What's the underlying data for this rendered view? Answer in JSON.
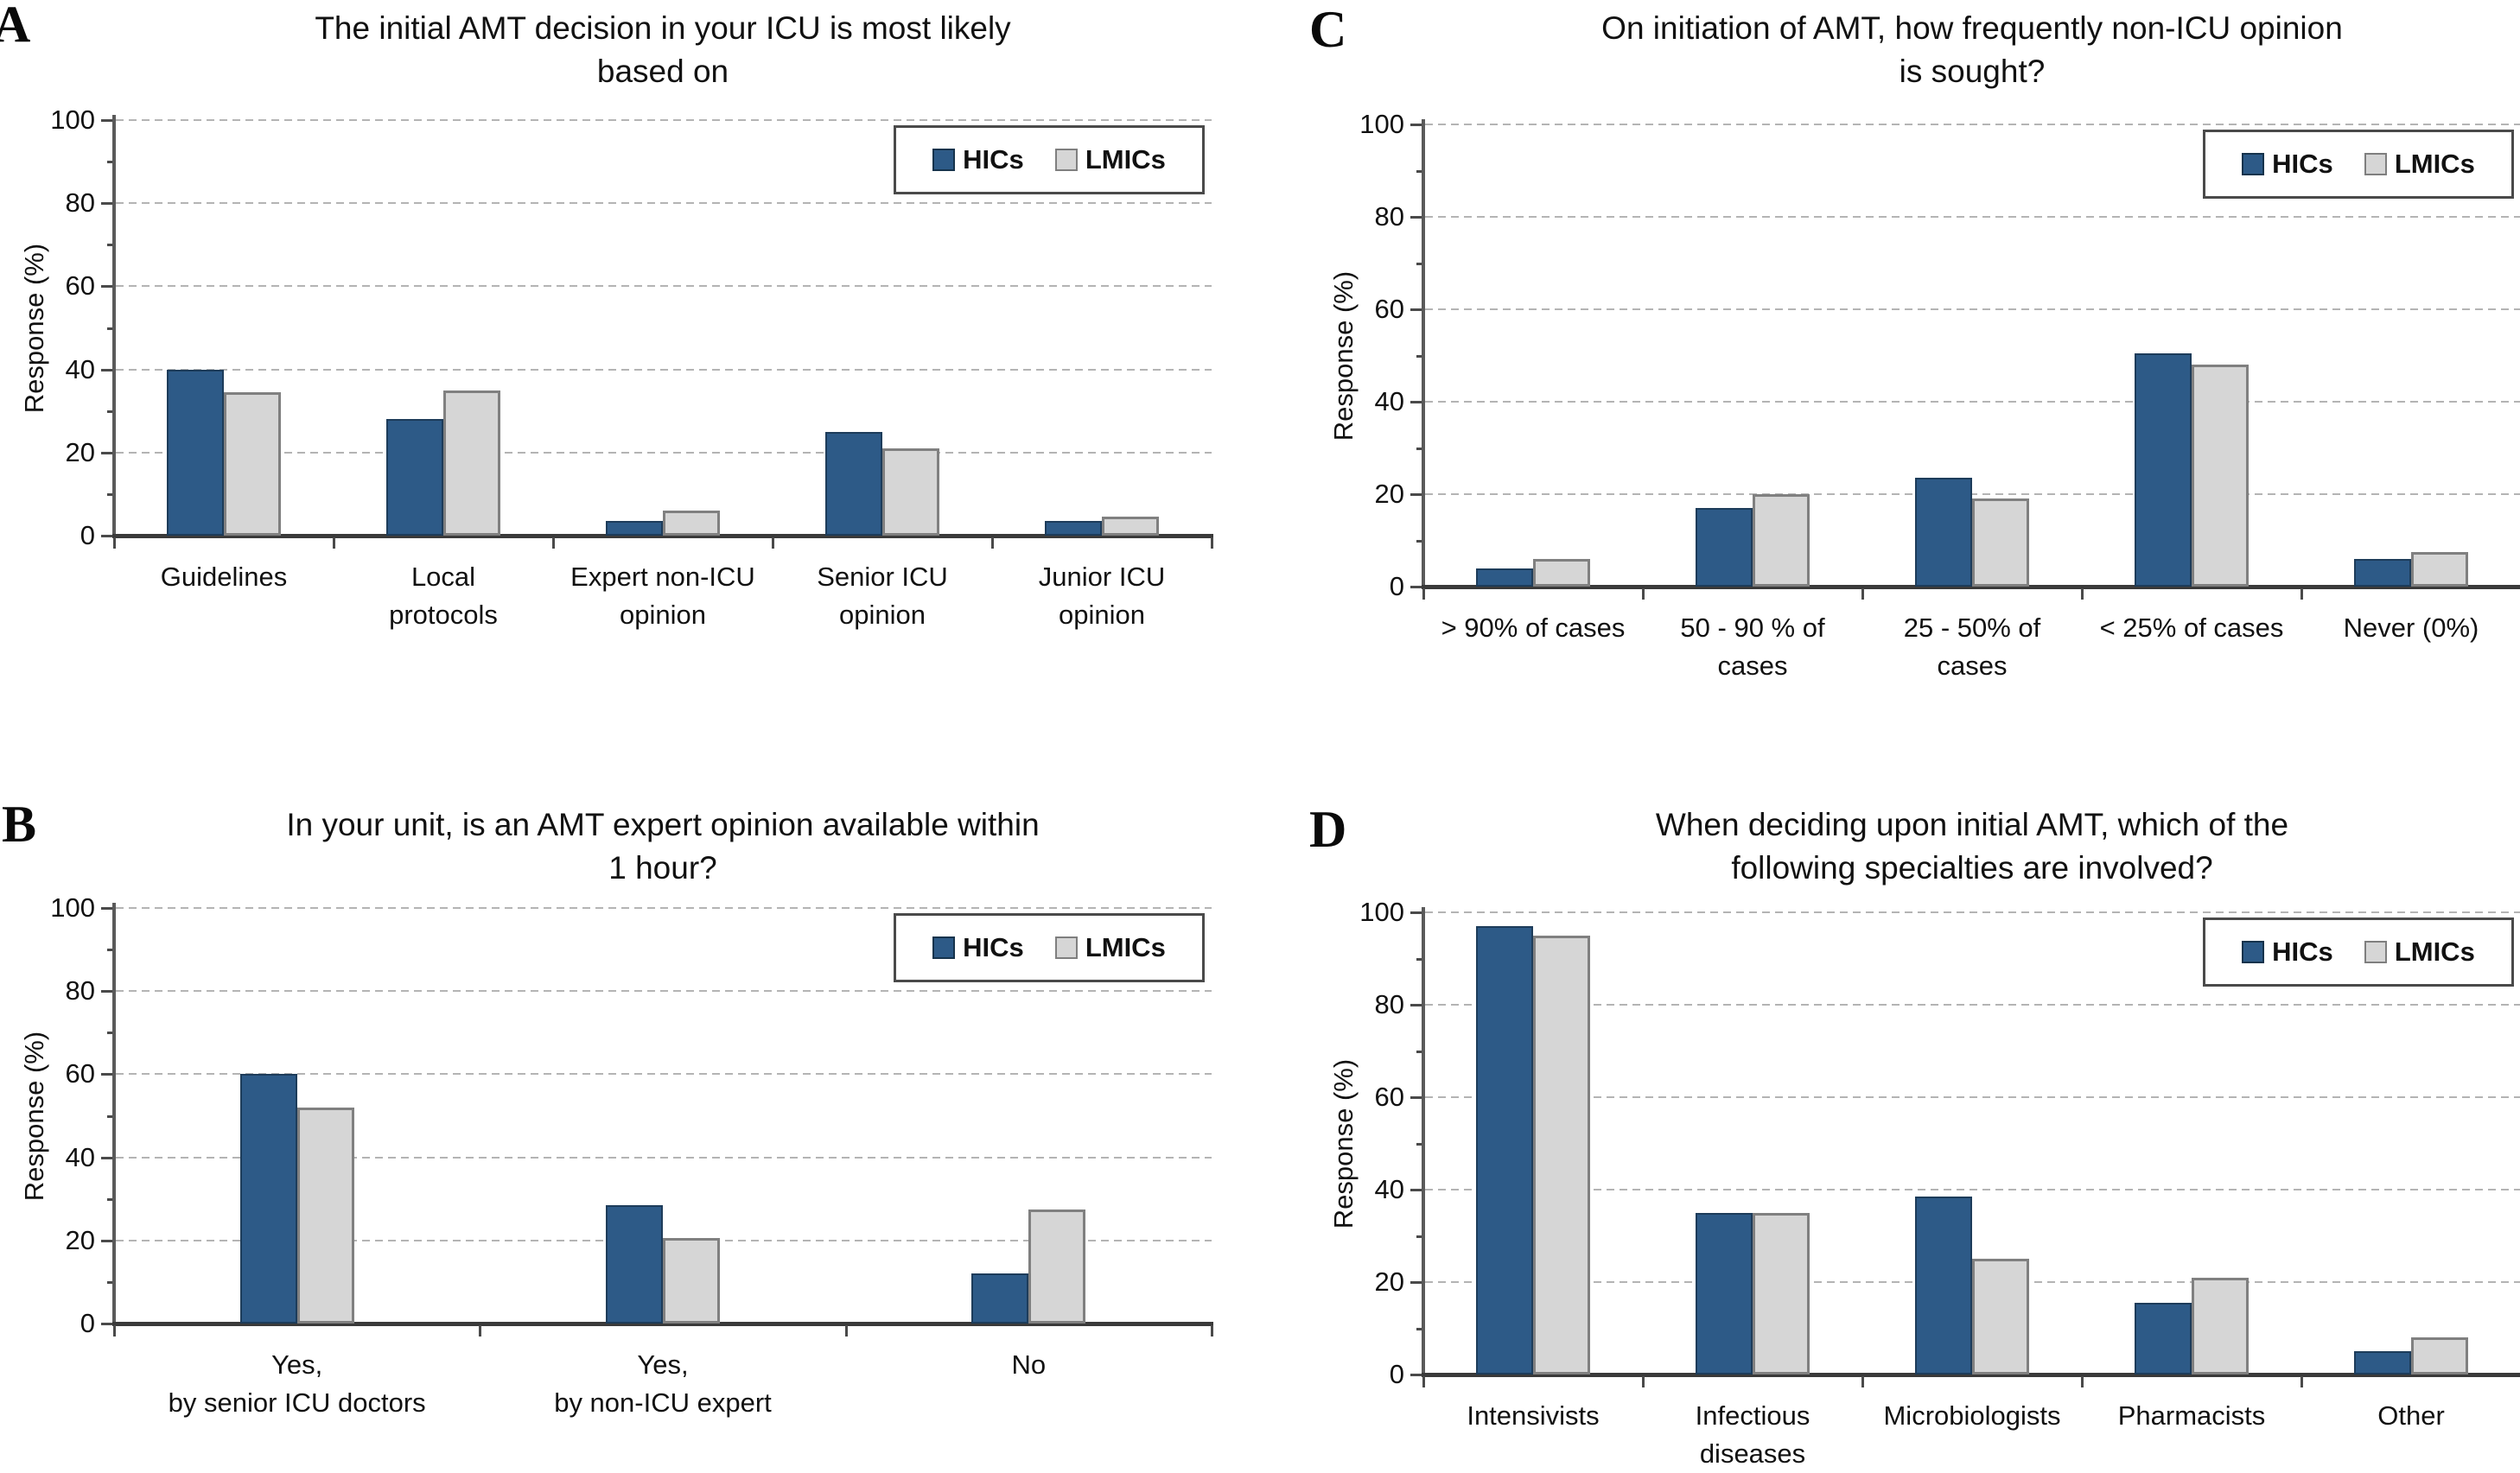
{
  "figure_title": "Four-panel survey bar charts comparing HICs and LMICs",
  "colors": {
    "hics_fill": "#2d5a87",
    "lmics_fill": "#d6d6d6",
    "gridline": "#b4b4b4",
    "axis": "#4a4a4a"
  },
  "chart_data": [
    {
      "type": "bar",
      "panel": "A",
      "title_lines": [
        "The initial AMT decision in your ICU is most likely",
        "based on"
      ],
      "ylabel": "Response (%)",
      "ylim": [
        0,
        100
      ],
      "yticks": [
        0,
        20,
        40,
        60,
        80,
        100
      ],
      "grid": true,
      "legend_position": "top-right",
      "categories": [
        "Guidelines",
        "Local\nprotocols",
        "Expert non-ICU\nopinion",
        "Senior ICU\nopinion",
        "Junior ICU\nopinion"
      ],
      "series": [
        {
          "name": "HICs",
          "values": [
            40,
            28,
            3.5,
            25,
            3.5
          ]
        },
        {
          "name": "LMICs",
          "values": [
            34.5,
            35,
            6,
            21,
            4.5
          ]
        }
      ]
    },
    {
      "type": "bar",
      "panel": "B",
      "title_lines": [
        "In your unit, is an AMT expert opinion available within",
        "1 hour?"
      ],
      "ylabel": "Response (%)",
      "ylim": [
        0,
        100
      ],
      "yticks": [
        0,
        20,
        40,
        60,
        80,
        100
      ],
      "grid": true,
      "legend_position": "top-right",
      "categories": [
        "Yes,\nby senior ICU doctors",
        "Yes,\nby non-ICU expert",
        "No"
      ],
      "series": [
        {
          "name": "HICs",
          "values": [
            60,
            28.5,
            12
          ]
        },
        {
          "name": "LMICs",
          "values": [
            52,
            20.5,
            27.5
          ]
        }
      ]
    },
    {
      "type": "bar",
      "panel": "C",
      "title_lines": [
        "On initiation of AMT, how frequently non-ICU opinion",
        "is sought?"
      ],
      "ylabel": "Response (%)",
      "ylim": [
        0,
        100
      ],
      "yticks": [
        0,
        20,
        40,
        60,
        80,
        100
      ],
      "grid": true,
      "legend_position": "top-right",
      "categories": [
        "> 90% of cases",
        "50 - 90 % of\ncases",
        "25 - 50% of\ncases",
        "< 25% of cases",
        "Never (0%)"
      ],
      "series": [
        {
          "name": "HICs",
          "values": [
            4,
            17,
            23.5,
            50.5,
            6
          ]
        },
        {
          "name": "LMICs",
          "values": [
            6,
            20,
            19,
            48,
            7.5
          ]
        }
      ]
    },
    {
      "type": "bar",
      "panel": "D",
      "title_lines": [
        "When deciding upon initial AMT, which of the",
        "following specialties are involved?"
      ],
      "ylabel": "Response (%)",
      "ylim": [
        0,
        100
      ],
      "yticks": [
        0,
        20,
        40,
        60,
        80,
        100
      ],
      "grid": true,
      "legend_position": "top-right",
      "categories": [
        "Intensivists",
        "Infectious\ndiseases",
        "Microbiologists",
        "Pharmacists",
        "Other"
      ],
      "series": [
        {
          "name": "HICs",
          "values": [
            97,
            35,
            38.5,
            15.5,
            5
          ]
        },
        {
          "name": "LMICs",
          "values": [
            95,
            35,
            25,
            21,
            8
          ]
        }
      ]
    }
  ]
}
